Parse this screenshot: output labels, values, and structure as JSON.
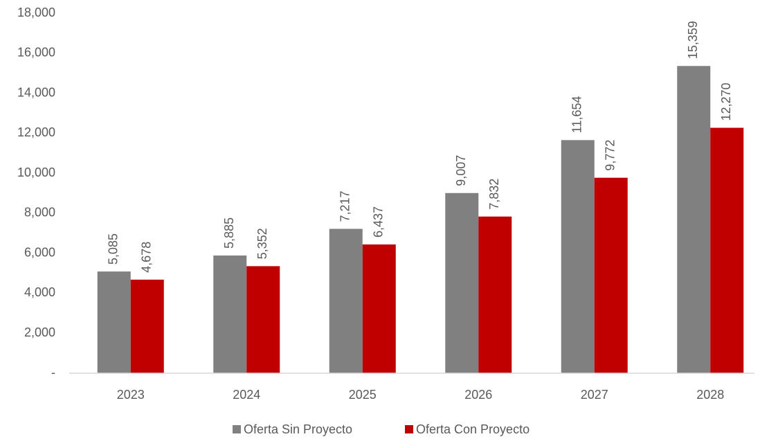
{
  "chart_data": {
    "type": "bar",
    "categories": [
      "2023",
      "2024",
      "2025",
      "2026",
      "2027",
      "2028"
    ],
    "series": [
      {
        "name": "Oferta Sin Proyecto",
        "color": "#808080",
        "values": [
          5085,
          5885,
          7217,
          9007,
          11654,
          15359
        ],
        "value_labels": [
          "5,085",
          "5,885",
          "7,217",
          "9,007",
          "11,654",
          "15,359"
        ]
      },
      {
        "name": "Oferta Con Proyecto",
        "color": "#c00000",
        "values": [
          4678,
          5352,
          6437,
          7832,
          9772,
          12270
        ],
        "value_labels": [
          "4,678",
          "5,352",
          "6,437",
          "7,832",
          "9,772",
          "12,270"
        ]
      }
    ],
    "ylim": [
      0,
      18000
    ],
    "yticks": [
      {
        "value": 0,
        "label": "-"
      },
      {
        "value": 2000,
        "label": "2,000"
      },
      {
        "value": 4000,
        "label": "4,000"
      },
      {
        "value": 6000,
        "label": "6,000"
      },
      {
        "value": 8000,
        "label": "8,000"
      },
      {
        "value": 10000,
        "label": "10,000"
      },
      {
        "value": 12000,
        "label": "12,000"
      },
      {
        "value": 14000,
        "label": "14,000"
      },
      {
        "value": 16000,
        "label": "16,000"
      },
      {
        "value": 18000,
        "label": "18,000"
      }
    ],
    "grid": false,
    "legend": "bottom"
  }
}
